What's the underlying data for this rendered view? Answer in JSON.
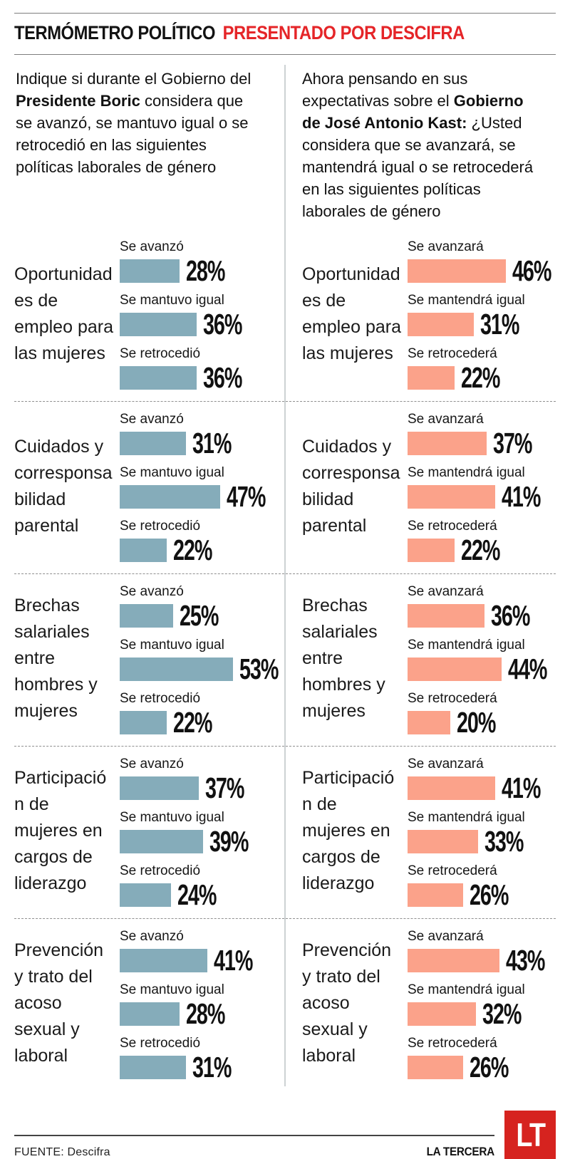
{
  "header": {
    "title_black": "TERMÓMETRO POLÍTICO",
    "title_red": "PRESENTADO POR DESCIFRA"
  },
  "colors": {
    "accent_red": "#E52528",
    "logo_red": "#D6231F",
    "boric_bar": "#85ACBA",
    "kast_bar": "#FBA28A"
  },
  "columns": [
    {
      "intro_pre": "Indique si durante el Gobierno del ",
      "intro_bold": "Presidente Boric",
      "intro_post": " considera que se avanzó, se mantuvo igual o se retrocedió en las siguientes políticas laborales de género"
    },
    {
      "intro_pre": "Ahora pensando en sus expectativas sobre el ",
      "intro_bold": "Gobierno de José Antonio Kast:",
      "intro_post": " ¿Usted considera que se avanzará, se mantendrá igual o se retrocederá en las siguientes políticas laborales de género"
    }
  ],
  "chart_data": {
    "type": "bar",
    "orientation": "horizontal",
    "unit": "%",
    "xlim": [
      0,
      60
    ],
    "title": "TERMÓMETRO POLÍTICO PRESENTADO POR DESCIFRA",
    "categories": [
      "Oportunidades de empleo para las mujeres",
      "Cuidados y corresponsabilidad parental",
      "Brechas salariales entre hombres y mujeres",
      "Participación de mujeres en cargos de liderazgo",
      "Prevención y trato del acoso sexual y laboral"
    ],
    "panels": [
      {
        "name": "Gobierno del Presidente Boric",
        "bar_color": "#85ACBA",
        "series": [
          {
            "name": "Se avanzó",
            "values": [
              28,
              31,
              25,
              37,
              41
            ]
          },
          {
            "name": "Se mantuvo igual",
            "values": [
              36,
              47,
              53,
              39,
              28
            ]
          },
          {
            "name": "Se retrocedió",
            "values": [
              36,
              22,
              22,
              24,
              31
            ]
          }
        ]
      },
      {
        "name": "Gobierno de José Antonio Kast",
        "bar_color": "#FBA28A",
        "series": [
          {
            "name": "Se avanzará",
            "values": [
              46,
              37,
              36,
              41,
              43
            ]
          },
          {
            "name": "Se mantendrá igual",
            "values": [
              31,
              41,
              44,
              33,
              32
            ]
          },
          {
            "name": "Se retrocederá",
            "values": [
              22,
              22,
              20,
              26,
              26
            ]
          }
        ]
      }
    ]
  },
  "footer": {
    "source": "FUENTE: Descifra",
    "brand": "LA TERCERA",
    "logo_text": "LT"
  }
}
